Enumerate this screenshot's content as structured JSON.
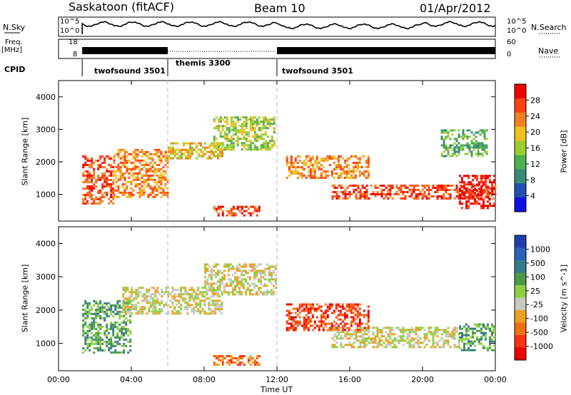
{
  "header": {
    "station": "Saskatoon (fitACF)",
    "beam": "Beam 10",
    "date": "01/Apr/2012"
  },
  "top_panels": {
    "nsky_label": "N.Sky",
    "nsearch_label": "N.Search",
    "freq_label_1": "Freq.",
    "freq_label_2": "[MHz]",
    "nave_label": "Nave",
    "cpid_label": "CPID",
    "nsky_ticks": [
      "10^5",
      "10^0"
    ],
    "nsearch_ticks": [
      "10^5",
      "10^0"
    ],
    "freq_ticks": [
      "18",
      "8"
    ],
    "nave_ticks": [
      "60",
      "0"
    ]
  },
  "cpid_segments": [
    {
      "label": "twofsound 3501",
      "start_h": 1.3,
      "end_h": 6.0
    },
    {
      "label": "themis 3300",
      "start_h": 6.0,
      "end_h": 12.0
    },
    {
      "label": "twofsound 3501",
      "start_h": 12.0,
      "end_h": 24.0
    }
  ],
  "colors": {
    "power_scale": [
      "#1010e0",
      "#2050b0",
      "#3a8a7a",
      "#4caf50",
      "#9acd32",
      "#f0c020",
      "#f08020",
      "#ff4010",
      "#ee0000"
    ],
    "velocity_scale": [
      "#1f3fb0",
      "#2a62b8",
      "#357a8a",
      "#4a9a4a",
      "#8fd040",
      "#c8c8c0",
      "#f0a020",
      "#f07010",
      "#ff3010",
      "#ee0000"
    ]
  },
  "chart_data": [
    {
      "type": "heatmap",
      "title": "Power",
      "ylabel": "Slant Range [km]",
      "xlabel": "Time UT",
      "x_ticks": [
        "00:00",
        "04:00",
        "08:00",
        "12:00",
        "16:00",
        "20:00",
        "00:00"
      ],
      "y_ticks": [
        "1000",
        "2000",
        "3000",
        "4000"
      ],
      "ylim": [
        180,
        4500
      ],
      "colorbar_label": "Power [dB]",
      "colorbar_ticks": [
        "4",
        "8",
        "12",
        "16",
        "20",
        "24",
        "28"
      ],
      "regions": [
        {
          "t0": 1.3,
          "t1": 3.0,
          "r0": 700,
          "r1": 2200,
          "level": 7
        },
        {
          "t0": 3.0,
          "t1": 6.0,
          "r0": 900,
          "r1": 2400,
          "level": 6
        },
        {
          "t0": 6.0,
          "t1": 9.0,
          "r0": 2100,
          "r1": 2600,
          "level": 5
        },
        {
          "t0": 8.5,
          "t1": 11.8,
          "r0": 2400,
          "r1": 3400,
          "level": 4
        },
        {
          "t0": 8.5,
          "t1": 11.0,
          "r0": 350,
          "r1": 650,
          "level": 7
        },
        {
          "t0": 12.5,
          "t1": 17.0,
          "r0": 1500,
          "r1": 2200,
          "level": 6
        },
        {
          "t0": 15.0,
          "t1": 24.0,
          "r0": 900,
          "r1": 1300,
          "level": 7
        },
        {
          "t0": 22.0,
          "t1": 24.0,
          "r0": 600,
          "r1": 1600,
          "level": 8
        },
        {
          "t0": 21.0,
          "t1": 23.5,
          "r0": 2200,
          "r1": 3000,
          "level": 3
        }
      ]
    },
    {
      "type": "heatmap",
      "title": "Velocity",
      "ylabel": "Slant Range [km]",
      "xlabel": "Time UT",
      "x_ticks": [
        "00:00",
        "04:00",
        "08:00",
        "12:00",
        "16:00",
        "20:00",
        "00:00"
      ],
      "y_ticks": [
        "1000",
        "2000",
        "3000",
        "4000"
      ],
      "ylim": [
        180,
        4500
      ],
      "colorbar_label": "Velocity [m s^-1]",
      "colorbar_ticks": [
        "1000",
        "500",
        "100",
        "25",
        "-25",
        "-100",
        "-500",
        "-1000"
      ],
      "regions": [
        {
          "t0": 1.3,
          "t1": 4.0,
          "r0": 700,
          "r1": 2300,
          "level": 3
        },
        {
          "t0": 3.5,
          "t1": 9.0,
          "r0": 1900,
          "r1": 2700,
          "level": 5
        },
        {
          "t0": 8.0,
          "t1": 12.0,
          "r0": 2500,
          "r1": 3400,
          "level": 5
        },
        {
          "t0": 8.5,
          "t1": 11.0,
          "r0": 350,
          "r1": 650,
          "level": 7
        },
        {
          "t0": 12.5,
          "t1": 17.0,
          "r0": 1400,
          "r1": 2200,
          "level": 8
        },
        {
          "t0": 15.0,
          "t1": 22.0,
          "r0": 900,
          "r1": 1500,
          "level": 5
        },
        {
          "t0": 22.0,
          "t1": 24.0,
          "r0": 800,
          "r1": 1600,
          "level": 3
        }
      ]
    }
  ]
}
